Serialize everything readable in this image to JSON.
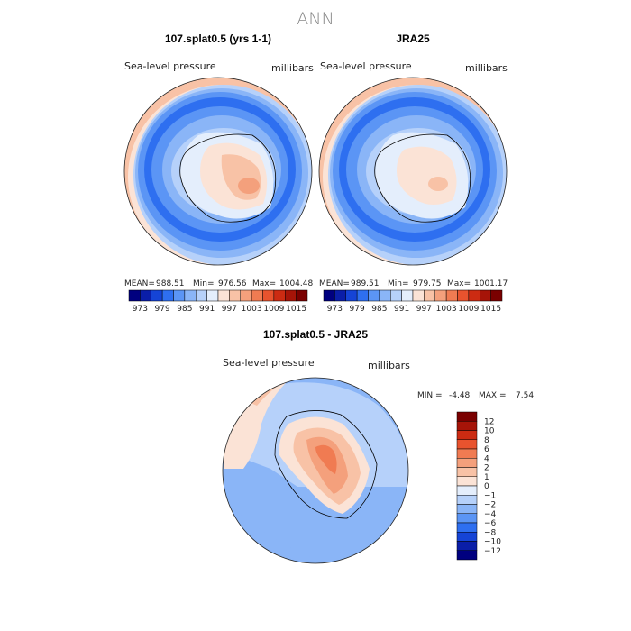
{
  "title": "ANN",
  "colors": {
    "map_scale": [
      "#00007f",
      "#0a1ea8",
      "#1544d6",
      "#2e6ff0",
      "#5b95f5",
      "#8ab5f7",
      "#b6d1fa",
      "#e4eefc",
      "#fbe3d6",
      "#f8c2a6",
      "#f4a07c",
      "#f07b52",
      "#e8532e",
      "#cc2b12",
      "#a61408",
      "#7a0000"
    ],
    "diff_scale": [
      "#00007f",
      "#0a1ea8",
      "#1544d6",
      "#2e6ff0",
      "#5b95f5",
      "#8ab5f7",
      "#b6d1fa",
      "#e4eefc",
      "#fbe3d6",
      "#f8c2a6",
      "#f4a07c",
      "#f07b52",
      "#e8532e",
      "#cc2b12",
      "#a61408",
      "#7a0000"
    ]
  },
  "chart_data": [
    {
      "type": "heatmap",
      "projection": "polar-stereographic-south",
      "title": "107.splat0.5 (yrs 1-1)",
      "left_label": "Sea-level pressure",
      "right_label": "millibars",
      "stats": {
        "mean_label": "MEAN=",
        "mean": "988.51",
        "min_label": "Min=",
        "min": "976.56",
        "max_label": "Max=",
        "max": "1004.48"
      },
      "colorbar_ticks": [
        "973",
        "979",
        "985",
        "991",
        "997",
        "1003",
        "1009",
        "1015"
      ]
    },
    {
      "type": "heatmap",
      "projection": "polar-stereographic-south",
      "title": "JRA25",
      "left_label": "Sea-level pressure",
      "right_label": "millibars",
      "stats": {
        "mean_label": "MEAN=",
        "mean": "989.51",
        "min_label": "Min=",
        "min": "979.75",
        "max_label": "Max=",
        "max": "1001.17"
      },
      "colorbar_ticks": [
        "973",
        "979",
        "985",
        "991",
        "997",
        "1003",
        "1009",
        "1015"
      ]
    },
    {
      "type": "heatmap",
      "projection": "polar-stereographic-south",
      "title": "107.splat0.5 - JRA25",
      "left_label": "Sea-level pressure",
      "right_label": "millibars",
      "stats": {
        "min_label": "MIN =",
        "min": "-4.48",
        "max_label": "MAX =",
        "max": "7.54"
      },
      "colorbar_ticks": [
        "12",
        "10",
        "8",
        "6",
        "4",
        "2",
        "1",
        "0",
        "−1",
        "−2",
        "−4",
        "−6",
        "−8",
        "−10",
        "−12"
      ]
    }
  ]
}
